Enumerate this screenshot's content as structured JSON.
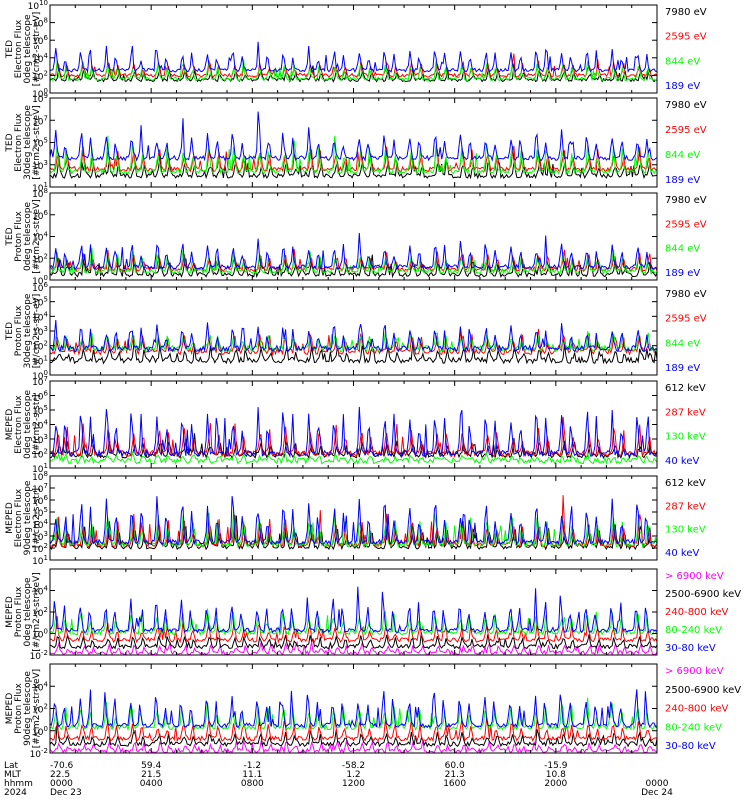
{
  "colors": {
    "black": "#000000",
    "red": "#ff0000",
    "green": "#00ff00",
    "blue": "#0000ff",
    "magenta": "#ff00ff"
  },
  "chart_data": {
    "type": "line",
    "x_axis": {
      "rows": [
        {
          "label": "Lat",
          "values": [
            "-70.6",
            "59.4",
            "-1.2",
            "-58.2",
            "60.0",
            "-15.9",
            ""
          ]
        },
        {
          "label": "MLT",
          "values": [
            "22.5",
            "21.5",
            "11.1",
            "1.2",
            "21.3",
            "10.8",
            ""
          ]
        },
        {
          "label": "hhmm",
          "values": [
            "0000",
            "0400",
            "0800",
            "1200",
            "1600",
            "2000",
            "0000"
          ]
        },
        {
          "label": "2024",
          "values": [
            "Dec 23",
            "",
            "",
            "",
            "",
            "",
            "Dec 24"
          ]
        }
      ]
    },
    "panels": [
      {
        "ylabel": [
          "TED",
          "Electron Flux",
          "0deg telescope",
          "[#/cm2-s-str-eV]"
        ],
        "yticks": [
          "10^0",
          "10^2",
          "10^4",
          "10^6",
          "10^8",
          "10^10"
        ],
        "ylog": [
          0,
          10
        ],
        "series": [
          {
            "name": "7980 eV",
            "color": "black",
            "base": 1.5,
            "spread": 1.2
          },
          {
            "name": "2595 eV",
            "color": "red",
            "base": 2.0,
            "spread": 1.5
          },
          {
            "name": "844 eV",
            "color": "green",
            "base": 1.6,
            "spread": 1.8
          },
          {
            "name": "189 eV",
            "color": "blue",
            "base": 2.6,
            "spread": 2.3
          }
        ]
      },
      {
        "ylabel": [
          "TED",
          "Electron Flux",
          "30deg telescope",
          "[#/cm2-s-str-eV]"
        ],
        "yticks": [
          "10^1",
          "10^3",
          "10^5",
          "10^7",
          "10^9"
        ],
        "ylog": [
          1,
          9
        ],
        "series": [
          {
            "name": "7980 eV",
            "color": "black",
            "base": 2.0,
            "spread": 1.4
          },
          {
            "name": "2595 eV",
            "color": "red",
            "base": 2.6,
            "spread": 1.8
          },
          {
            "name": "844 eV",
            "color": "green",
            "base": 2.4,
            "spread": 2.3
          },
          {
            "name": "189 eV",
            "color": "blue",
            "base": 3.6,
            "spread": 2.3
          }
        ]
      },
      {
        "ylabel": [
          "TED",
          "Proton Flux",
          "0deg telescope",
          "[#/cm2-s-str-eV]"
        ],
        "yticks": [
          "10^0",
          "10^2",
          "10^4",
          "10^6",
          "10^8"
        ],
        "ylog": [
          0,
          8
        ],
        "series": [
          {
            "name": "7980 eV",
            "color": "black",
            "base": 0.5,
            "spread": 1.3
          },
          {
            "name": "2595 eV",
            "color": "red",
            "base": 1.0,
            "spread": 1.4
          },
          {
            "name": "844 eV",
            "color": "green",
            "base": 0.8,
            "spread": 1.6
          },
          {
            "name": "189 eV",
            "color": "blue",
            "base": 1.2,
            "spread": 2.2
          }
        ]
      },
      {
        "ylabel": [
          "TED",
          "Proton Flux",
          "30deg telescope",
          "[#/cm2-s-str-eV]"
        ],
        "yticks": [
          "10^0",
          "10^1",
          "10^2",
          "10^3",
          "10^4",
          "10^5",
          "10^6"
        ],
        "ylog": [
          0,
          6
        ],
        "series": [
          {
            "name": "7980 eV",
            "color": "black",
            "base": 1.0,
            "spread": 0.9
          },
          {
            "name": "2595 eV",
            "color": "red",
            "base": 1.6,
            "spread": 1.2
          },
          {
            "name": "844 eV",
            "color": "green",
            "base": 1.8,
            "spread": 1.0
          },
          {
            "name": "189 eV",
            "color": "blue",
            "base": 1.8,
            "spread": 1.5
          }
        ]
      },
      {
        "ylabel": [
          "MEPED",
          "Electron Flux",
          "0deg telescope",
          "[#/cm2-s-str]"
        ],
        "yticks": [
          "10^1",
          "10^2",
          "10^3",
          "10^4",
          "10^5",
          "10^6",
          "10^7"
        ],
        "ylog": [
          1,
          7
        ],
        "series": [
          {
            "name": "612 keV",
            "color": "black",
            "base": 1.9,
            "spread": 0.9
          },
          {
            "name": "287 keV",
            "color": "red",
            "base": 2.0,
            "spread": 1.8
          },
          {
            "name": "130 keV",
            "color": "green",
            "base": 1.5,
            "spread": 0.4
          },
          {
            "name": "40 keV",
            "color": "blue",
            "base": 2.0,
            "spread": 3.0
          }
        ]
      },
      {
        "ylabel": [
          "MEPED",
          "Electron Flux",
          "90deg telescope",
          "[#/cm2-s-str]"
        ],
        "yticks": [
          "10^1",
          "10^2",
          "10^3",
          "10^4",
          "10^5",
          "10^6",
          "10^7",
          "10^8"
        ],
        "ylog": [
          1,
          8
        ],
        "series": [
          {
            "name": "612 keV",
            "color": "black",
            "base": 2.1,
            "spread": 1.8
          },
          {
            "name": "287 keV",
            "color": "red",
            "base": 2.3,
            "spread": 2.2
          },
          {
            "name": "130 keV",
            "color": "green",
            "base": 2.3,
            "spread": 2.4
          },
          {
            "name": "40 keV",
            "color": "blue",
            "base": 2.5,
            "spread": 3.2
          }
        ]
      },
      {
        "ylabel": [
          "MEPED",
          "Proton Flux",
          "0deg telescope",
          "[#/cm2-s-str-keV]"
        ],
        "yticks": [
          "10^-2",
          "10^0",
          "10^2",
          "10^4"
        ],
        "ylog": [
          -2,
          6
        ],
        "series": [
          {
            "name": "> 6900 keV",
            "color": "magenta",
            "base": -1.8,
            "spread": 0.8
          },
          {
            "name": "2500-6900 keV",
            "color": "black",
            "base": -1.2,
            "spread": 1.0
          },
          {
            "name": "240-800 keV",
            "color": "red",
            "base": -0.6,
            "spread": 1.5
          },
          {
            "name": "80-240 keV",
            "color": "green",
            "base": 0.1,
            "spread": 1.9
          },
          {
            "name": "30-80 keV",
            "color": "blue",
            "base": 0.3,
            "spread": 2.8
          }
        ]
      },
      {
        "ylabel": [
          "MEPED",
          "Proton Flux",
          "90deg telescope",
          "[#/cm2-s-str-keV]"
        ],
        "yticks": [
          "10^-2",
          "10^0",
          "10^2",
          "10^4"
        ],
        "ylog": [
          -2,
          6
        ],
        "series": [
          {
            "name": "> 6900 keV",
            "color": "magenta",
            "base": -1.8,
            "spread": 0.8
          },
          {
            "name": "2500-6900 keV",
            "color": "black",
            "base": -1.2,
            "spread": 1.0
          },
          {
            "name": "240-800 keV",
            "color": "red",
            "base": -0.7,
            "spread": 1.6
          },
          {
            "name": "80-240 keV",
            "color": "green",
            "base": 0.3,
            "spread": 2.0
          },
          {
            "name": "30-80 keV",
            "color": "blue",
            "base": 0.5,
            "spread": 2.8
          }
        ]
      }
    ]
  }
}
